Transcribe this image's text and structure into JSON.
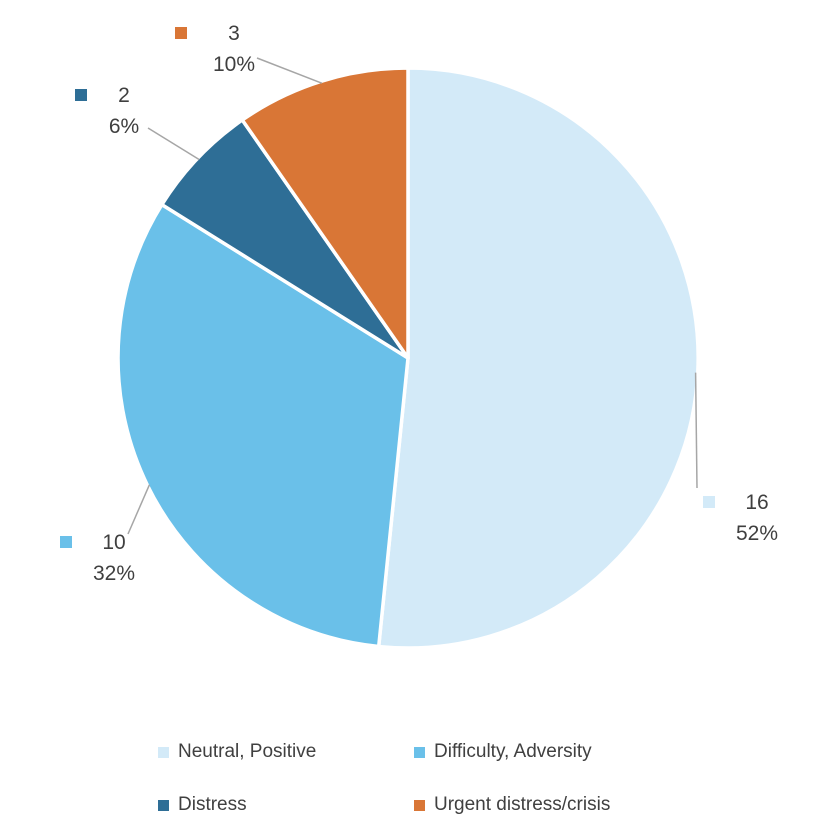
{
  "chart_data": {
    "type": "pie",
    "title": "",
    "slices": [
      {
        "label": "Neutral, Positive",
        "value": 16,
        "pct": "52%",
        "color": "#D3EAF8"
      },
      {
        "label": "Difficulty, Adversity",
        "value": 10,
        "pct": "32%",
        "color": "#6AC0E9"
      },
      {
        "label": "Distress",
        "value": 2,
        "pct": "6%",
        "color": "#2E6E96"
      },
      {
        "label": "Urgent distress/crisis",
        "value": 3,
        "pct": "10%",
        "color": "#D97636"
      }
    ],
    "total": 31,
    "start_angle_deg": 0,
    "direction": "clockwise",
    "legend_position": "bottom",
    "slice_border_color": "#FFFFFF",
    "leader_line_color": "#A6A6A6",
    "label_text_color": "#3F3F3F",
    "background": "#FFFFFF"
  }
}
